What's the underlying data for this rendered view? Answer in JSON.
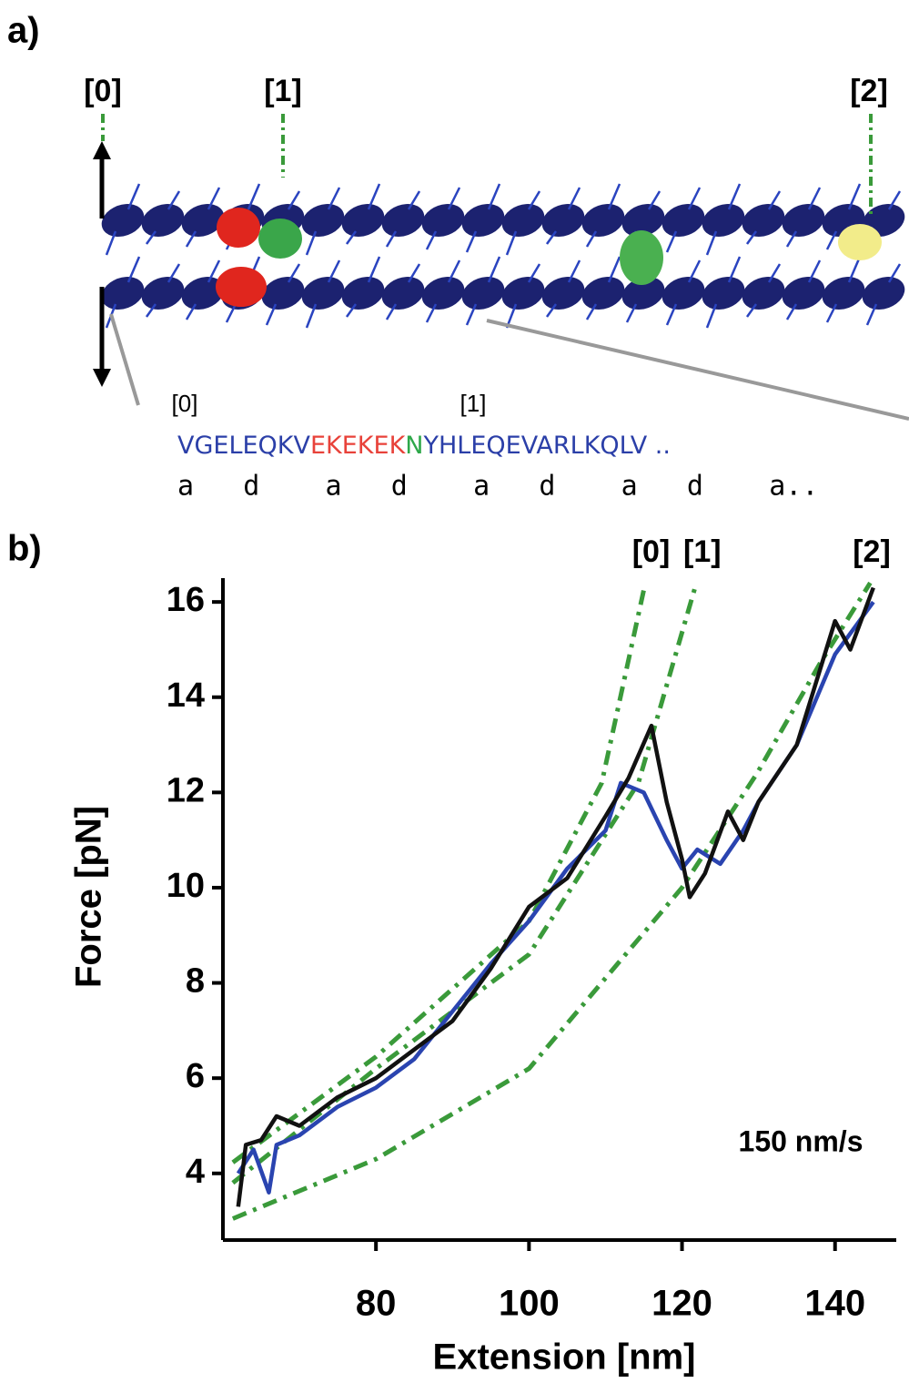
{
  "panel_a": {
    "label": "a)",
    "markers": [
      "[0]",
      "[1]",
      "[2]"
    ],
    "sequence_markers": [
      "[0]",
      "[1]"
    ],
    "sequence": [
      {
        "text": "VGELEQKV",
        "color": "#2b3fa8"
      },
      {
        "text": "EKEKEK",
        "color": "#e8423a"
      },
      {
        "text": "N",
        "color": "#2ea84a"
      },
      {
        "text": "YHLEQEVARLKQLV",
        "color": "#2b3fa8"
      },
      {
        "text": " ..",
        "color": "#2b3fa8"
      }
    ],
    "heptad": "a   d    a   d    a   d    a   d    a.."
  },
  "chart_data": {
    "type": "line",
    "panel_label": "b)",
    "x_label": "Extension [nm]",
    "y_label": "Force [pN]",
    "annotation": "150 nm/s",
    "xlim": [
      60,
      148
    ],
    "ylim": [
      2.6,
      16.5
    ],
    "xticks": [
      80,
      100,
      120,
      140
    ],
    "yticks": [
      4,
      6,
      8,
      10,
      12,
      14,
      16
    ],
    "series": [
      {
        "name": "[0]",
        "color": "#3a9a3a",
        "style": "dashdot",
        "x": [
          61.3,
          80,
          100,
          109.5,
          115
        ],
        "values": [
          4.23,
          6.45,
          9.3,
          12.2,
          16.25
        ]
      },
      {
        "name": "[1]",
        "color": "#3a9a3a",
        "style": "dashdot",
        "x": [
          61.3,
          80,
          100,
          114.3,
          121.7
        ],
        "values": [
          3.8,
          6.2,
          8.6,
          12.2,
          16.3
        ]
      },
      {
        "name": "[2]",
        "color": "#3a9a3a",
        "style": "dashdot",
        "x": [
          61.3,
          80,
          100,
          120,
          129.8,
          138,
          144.6
        ],
        "values": [
          3.05,
          4.3,
          6.2,
          10.0,
          12.4,
          14.7,
          16.4
        ]
      },
      {
        "color": "#2a44b0",
        "style": "solid",
        "x": [
          62,
          64,
          66,
          67,
          70,
          75,
          80,
          85,
          90,
          95,
          100,
          105,
          110,
          112,
          115,
          118,
          120,
          122,
          125,
          128,
          130,
          135,
          140,
          145
        ],
        "values": [
          4.0,
          4.5,
          3.6,
          4.6,
          4.8,
          5.4,
          5.8,
          6.4,
          7.4,
          8.4,
          9.3,
          10.4,
          11.2,
          12.2,
          12.0,
          11.0,
          10.4,
          10.8,
          10.5,
          11.2,
          11.8,
          13.0,
          14.9,
          16.0
        ]
      },
      {
        "color": "#111111",
        "style": "solid",
        "x": [
          62,
          63,
          65,
          67,
          70,
          75,
          80,
          85,
          90,
          95,
          100,
          105,
          110,
          113,
          116,
          118,
          120,
          121,
          123,
          126,
          128,
          130,
          135,
          140,
          142,
          145
        ],
        "values": [
          3.3,
          4.6,
          4.7,
          5.2,
          5.0,
          5.6,
          6.0,
          6.6,
          7.2,
          8.3,
          9.6,
          10.2,
          11.5,
          12.3,
          13.4,
          11.8,
          10.6,
          9.8,
          10.3,
          11.6,
          11.0,
          11.8,
          13.0,
          15.6,
          15.0,
          16.3
        ]
      }
    ]
  }
}
